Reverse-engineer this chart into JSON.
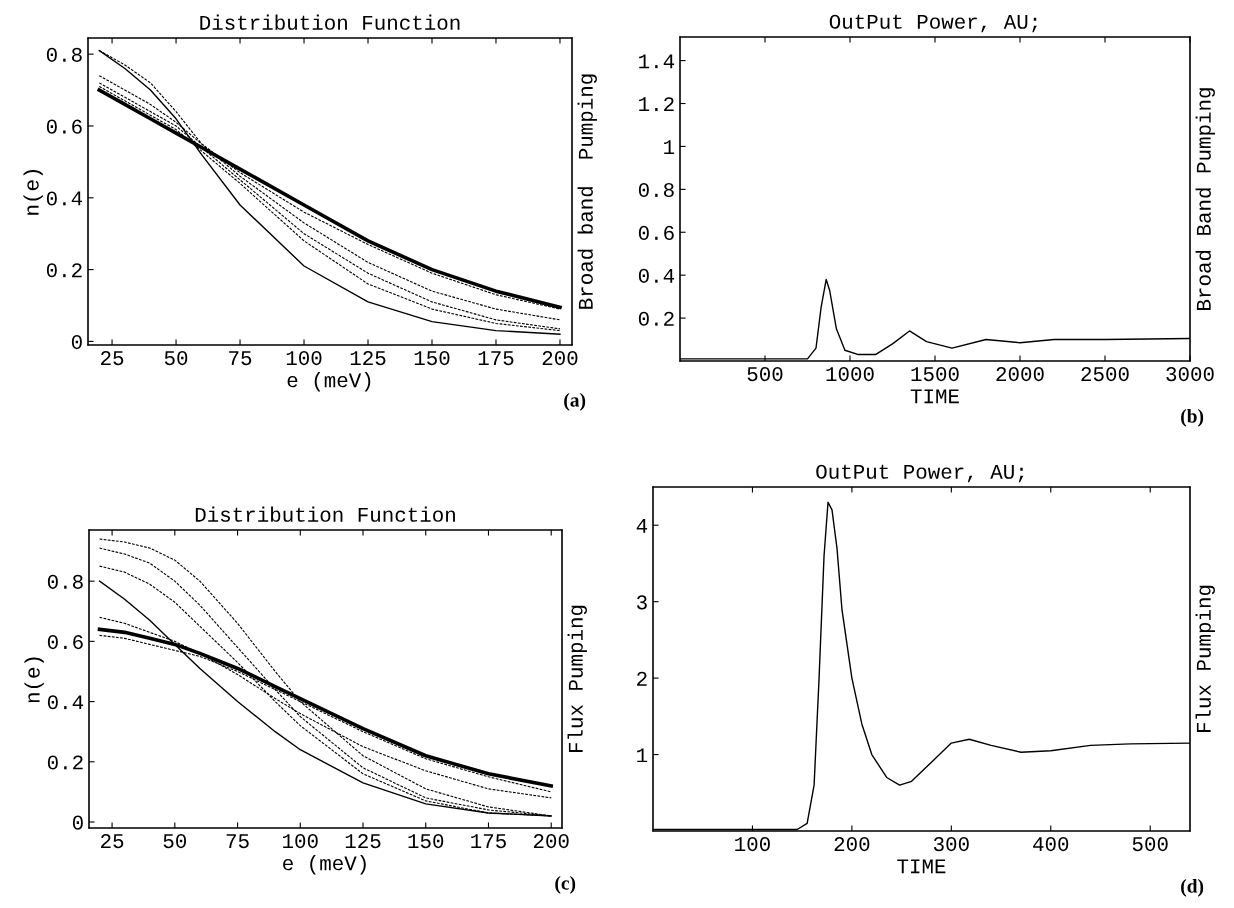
{
  "chart_data": [
    {
      "type": "line",
      "title": "Distribution Function",
      "xlabel": "e (meV)",
      "ylabel": "n(e)",
      "y2label": "Broad band  Pumping",
      "annotations": [
        "(a)"
      ],
      "x": [
        20,
        30,
        40,
        50,
        60,
        75,
        100,
        125,
        150,
        175,
        200
      ],
      "xlim": [
        15.6,
        204.7
      ],
      "xticks": [
        25,
        50,
        75,
        100,
        125,
        150,
        175,
        200
      ],
      "ylim": [
        -0.01,
        0.845
      ],
      "yticks": [
        0,
        0.2,
        0.4,
        0.6,
        0.8
      ],
      "series": [
        {
          "color": "#000000",
          "line_style": "dashed",
          "values": [
            0.81,
            0.77,
            0.72,
            0.64,
            0.55,
            0.47,
            0.36,
            0.27,
            0.19,
            0.13,
            0.09
          ]
        },
        {
          "color": "#000000",
          "line_style": "dashed",
          "values": [
            0.74,
            0.7,
            0.66,
            0.61,
            0.55,
            0.46,
            0.33,
            0.22,
            0.14,
            0.09,
            0.06
          ]
        },
        {
          "color": "#000000",
          "line_style": "dashed",
          "values": [
            0.72,
            0.68,
            0.64,
            0.6,
            0.54,
            0.45,
            0.3,
            0.19,
            0.11,
            0.06,
            0.035
          ]
        },
        {
          "color": "#000000",
          "line_style": "dashed",
          "values": [
            0.71,
            0.67,
            0.63,
            0.59,
            0.53,
            0.44,
            0.28,
            0.16,
            0.09,
            0.05,
            0.03
          ]
        },
        {
          "color": "#000000",
          "line_style": "solid",
          "values": [
            0.81,
            0.76,
            0.7,
            0.62,
            0.52,
            0.38,
            0.21,
            0.11,
            0.055,
            0.03,
            0.02
          ]
        },
        {
          "color": "#000000",
          "line_style": "solid",
          "values": [
            0.7,
            0.66,
            0.62,
            0.58,
            0.54,
            0.48,
            0.38,
            0.28,
            0.2,
            0.14,
            0.095
          ]
        }
      ]
    },
    {
      "type": "line",
      "title": "OutPut Power, AU;",
      "xlabel": "TIME",
      "y2label": "Broad Band Pumping",
      "annotations": [
        "(b)"
      ],
      "x": [
        0,
        750,
        800,
        830,
        860,
        880,
        920,
        970,
        1050,
        1150,
        1250,
        1350,
        1450,
        1600,
        1800,
        2000,
        2200,
        2500,
        3000
      ],
      "xlim": [
        0,
        3000
      ],
      "xticks": [
        500,
        1000,
        1500,
        2000,
        2500,
        3000
      ],
      "ylim": [
        0,
        1.51
      ],
      "yticks": [
        0.2,
        0.4,
        0.6,
        0.8,
        1,
        1.2,
        1.4
      ],
      "series": [
        {
          "color": "#000000",
          "line_style": "solid",
          "values": [
            0.01,
            0.01,
            0.06,
            0.25,
            0.38,
            0.33,
            0.15,
            0.05,
            0.03,
            0.03,
            0.08,
            0.14,
            0.09,
            0.06,
            0.1,
            0.085,
            0.1,
            0.1,
            0.105
          ]
        }
      ]
    },
    {
      "type": "line",
      "title": "Distribution Function",
      "xlabel": "e (meV)",
      "ylabel": "n(e)",
      "y2label": "Flux Pumping",
      "annotations": [
        "(c)"
      ],
      "x": [
        20,
        30,
        40,
        50,
        60,
        75,
        90,
        100,
        125,
        150,
        175,
        200
      ],
      "xlim": [
        15.8,
        204.3
      ],
      "xticks": [
        25,
        50,
        75,
        100,
        125,
        150,
        175,
        200
      ],
      "ylim": [
        -0.02,
        0.97
      ],
      "yticks": [
        0,
        0.2,
        0.4,
        0.6,
        0.8
      ],
      "series": [
        {
          "color": "#000000",
          "line_style": "dashed",
          "values": [
            0.94,
            0.93,
            0.91,
            0.87,
            0.8,
            0.66,
            0.5,
            0.4,
            0.22,
            0.11,
            0.05,
            0.02
          ]
        },
        {
          "color": "#000000",
          "line_style": "dashed",
          "values": [
            0.91,
            0.89,
            0.86,
            0.8,
            0.72,
            0.58,
            0.44,
            0.35,
            0.18,
            0.08,
            0.04,
            0.02
          ]
        },
        {
          "color": "#000000",
          "line_style": "dashed",
          "values": [
            0.85,
            0.83,
            0.79,
            0.73,
            0.65,
            0.53,
            0.4,
            0.32,
            0.16,
            0.07,
            0.03,
            0.02
          ]
        },
        {
          "color": "#000000",
          "line_style": "dashed",
          "values": [
            0.68,
            0.66,
            0.63,
            0.6,
            0.56,
            0.49,
            0.41,
            0.36,
            0.25,
            0.17,
            0.11,
            0.08
          ]
        },
        {
          "color": "#000000",
          "line_style": "dashed",
          "values": [
            0.62,
            0.61,
            0.59,
            0.57,
            0.55,
            0.5,
            0.44,
            0.4,
            0.3,
            0.21,
            0.15,
            0.1
          ]
        },
        {
          "color": "#000000",
          "line_style": "solid",
          "values": [
            0.8,
            0.74,
            0.67,
            0.59,
            0.51,
            0.4,
            0.3,
            0.24,
            0.13,
            0.06,
            0.03,
            0.02
          ]
        },
        {
          "color": "#000000",
          "line_style": "solid",
          "values": [
            0.64,
            0.63,
            0.61,
            0.59,
            0.56,
            0.51,
            0.45,
            0.41,
            0.31,
            0.22,
            0.16,
            0.12
          ]
        }
      ]
    },
    {
      "type": "line",
      "title": "OutPut Power, AU;",
      "xlabel": "TIME",
      "y2label": "Flux Pumping",
      "annotations": [
        "(d)"
      ],
      "x": [
        0,
        145,
        155,
        162,
        167,
        172,
        176,
        180,
        185,
        190,
        200,
        210,
        220,
        235,
        248,
        260,
        280,
        300,
        318,
        340,
        370,
        400,
        440,
        480,
        540
      ],
      "xlim": [
        0,
        540
      ],
      "xticks": [
        100,
        200,
        300,
        400,
        500
      ],
      "ylim": [
        0,
        4.5
      ],
      "yticks": [
        1,
        2,
        3,
        4
      ],
      "series": [
        {
          "color": "#000000",
          "line_style": "solid",
          "values": [
            0.02,
            0.02,
            0.1,
            0.6,
            2.0,
            3.6,
            4.3,
            4.2,
            3.7,
            2.9,
            2.0,
            1.4,
            1.0,
            0.7,
            0.6,
            0.65,
            0.9,
            1.15,
            1.2,
            1.12,
            1.03,
            1.05,
            1.12,
            1.14,
            1.15
          ]
        }
      ]
    }
  ]
}
